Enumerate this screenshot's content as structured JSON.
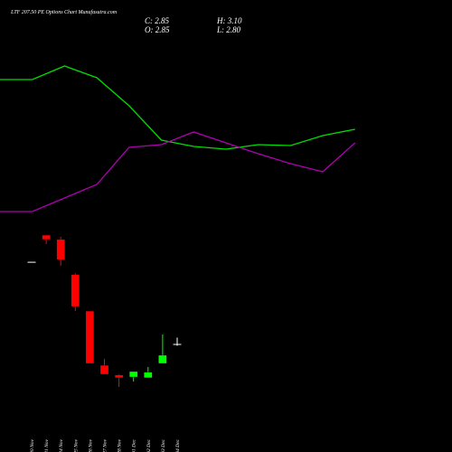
{
  "title": "LTF 207.50 PE Options Chart Munafasutra.com",
  "info": [
    {
      "key": "C:",
      "text": "2.85"
    },
    {
      "key": "H:",
      "text": "3.10"
    },
    {
      "key": "O:",
      "text": "2.85"
    },
    {
      "key": "L:",
      "text": "2.80"
    }
  ],
  "chart_data": [
    {
      "type": "line",
      "categories": [
        null,
        null,
        null,
        null,
        null,
        null,
        null,
        null,
        null,
        null,
        null,
        null
      ],
      "ylim": [
        0,
        100
      ],
      "series": [
        {
          "color": "#00dd00",
          "values": [
            81,
            81,
            88.5,
            82,
            66.5,
            47.5,
            44,
            42.5,
            45,
            44.5,
            50,
            53.5
          ]
        },
        {
          "color": "#b000b0",
          "values": [
            8,
            8,
            15.5,
            23,
            43.5,
            45,
            52,
            46,
            40,
            34.5,
            30,
            46
          ]
        }
      ]
    },
    {
      "type": "candlestick",
      "categories": [
        "20 Nov",
        "21 Nov",
        "24 Nov",
        "25 Nov",
        "26 Nov",
        "27 Nov",
        "28 Nov",
        "01 Dec",
        "02 Dec",
        "03 Dec",
        "04 Dec"
      ],
      "ylim": [
        1,
        7
      ],
      "colors": {
        "up": "#00ff00",
        "down": "#ff0000",
        "flat": "#ffffff"
      },
      "open": [
        5.88,
        6.88,
        6.72,
        5.42,
        4.08,
        2.08,
        1.72,
        1.65,
        1.62,
        2.15,
        2.85
      ],
      "high": [
        5.88,
        6.88,
        6.82,
        5.48,
        4.08,
        2.32,
        1.75,
        1.85,
        2.02,
        3.22,
        3.1
      ],
      "low": [
        5.88,
        6.55,
        5.75,
        4.08,
        2.15,
        1.75,
        1.28,
        1.48,
        1.62,
        2.15,
        2.8
      ],
      "close": [
        5.88,
        6.72,
        5.98,
        4.25,
        2.15,
        1.75,
        1.62,
        1.85,
        1.82,
        2.45,
        2.85
      ]
    }
  ]
}
